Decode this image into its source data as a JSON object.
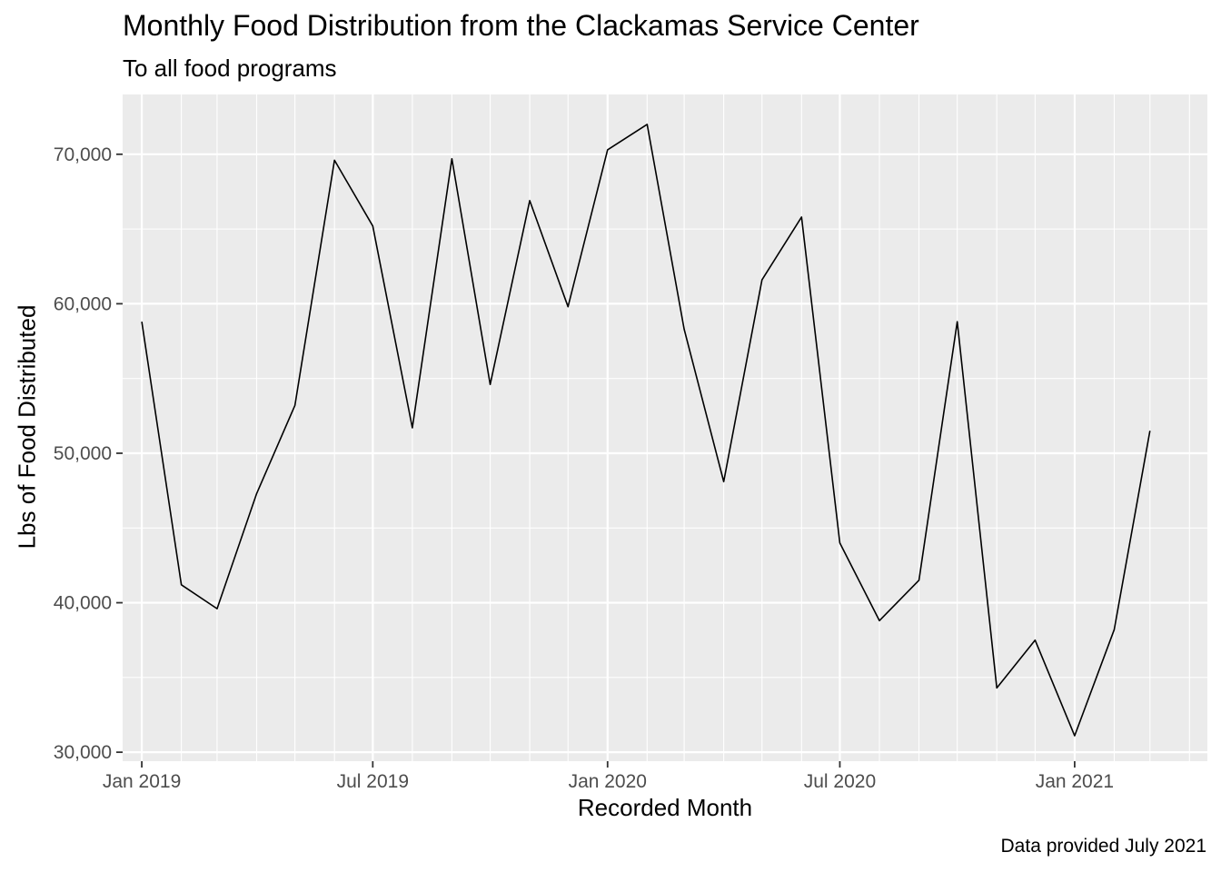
{
  "chart_data": {
    "type": "line",
    "title": "Monthly Food Distribution from the Clackamas Service Center",
    "subtitle": "To all food programs",
    "xlabel": "Recorded Month",
    "ylabel": "Lbs of Food Distributed",
    "caption": "Data provided July 2021",
    "x_axis": "date",
    "xlim": [
      "2018-12-17",
      "2021-04-15"
    ],
    "ylim": [
      29400,
      74000
    ],
    "grid": true,
    "legend": "none",
    "colors": {
      "panel": "#ebebeb",
      "grid": "#ffffff",
      "line": "#000000",
      "tick_text": "#4d4d4d",
      "tick": "#333333"
    },
    "x_ticks": [
      {
        "date": "2019-01-01",
        "label": "Jan 2019"
      },
      {
        "date": "2019-07-01",
        "label": "Jul 2019"
      },
      {
        "date": "2020-01-01",
        "label": "Jan 2020"
      },
      {
        "date": "2020-07-01",
        "label": "Jul 2020"
      },
      {
        "date": "2021-01-01",
        "label": "Jan 2021"
      }
    ],
    "y_ticks": [
      {
        "value": 30000,
        "label": "30,000"
      },
      {
        "value": 40000,
        "label": "40,000"
      },
      {
        "value": 50000,
        "label": "50,000"
      },
      {
        "value": 60000,
        "label": "60,000"
      },
      {
        "value": 70000,
        "label": "70,000"
      }
    ],
    "series": [
      {
        "x": [
          "2019-01-01",
          "2019-02-01",
          "2019-03-01",
          "2019-04-01",
          "2019-05-01",
          "2019-06-01",
          "2019-07-01",
          "2019-08-01",
          "2019-09-01",
          "2019-10-01",
          "2019-11-01",
          "2019-12-01",
          "2020-01-01",
          "2020-02-01",
          "2020-03-01",
          "2020-04-01",
          "2020-05-01",
          "2020-06-01",
          "2020-07-01",
          "2020-08-01",
          "2020-09-01",
          "2020-10-01",
          "2020-11-01",
          "2020-12-01",
          "2021-01-01",
          "2021-02-01",
          "2021-03-01"
        ],
        "y": [
          58800,
          41200,
          39600,
          47300,
          53200,
          69600,
          65200,
          51700,
          69700,
          54600,
          66900,
          59800,
          70300,
          72000,
          58300,
          48100,
          61600,
          65800,
          44000,
          38800,
          41500,
          58800,
          34300,
          37500,
          31100,
          38200,
          51500
        ]
      }
    ]
  }
}
